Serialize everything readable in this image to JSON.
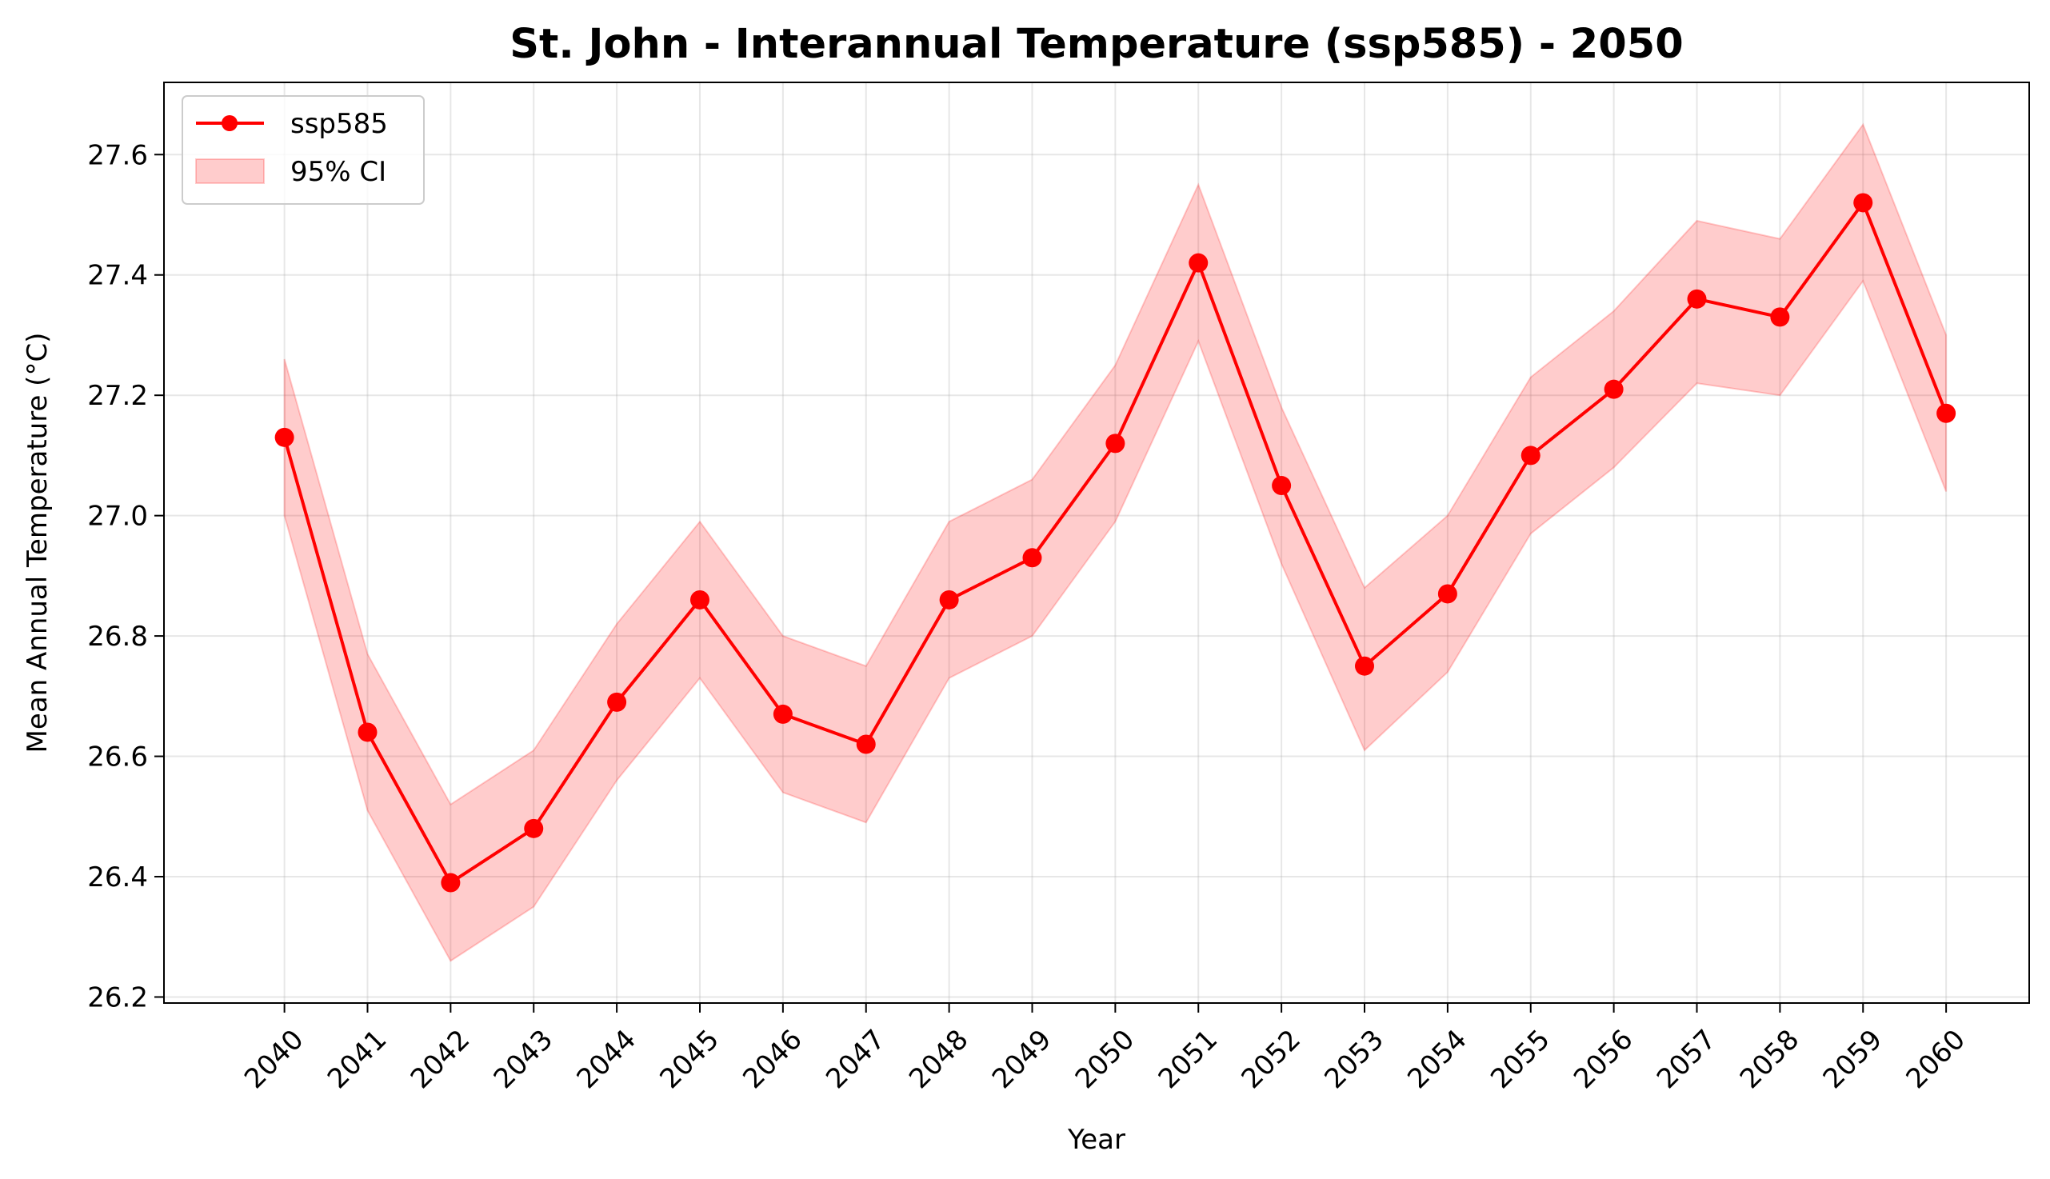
{
  "chart_data": {
    "type": "line",
    "title": "St. John - Interannual Temperature (ssp585) - 2050",
    "xlabel": "Year",
    "ylabel": "Mean Annual Temperature (°C)",
    "x": [
      2040,
      2041,
      2042,
      2043,
      2044,
      2045,
      2046,
      2047,
      2048,
      2049,
      2050,
      2051,
      2052,
      2053,
      2054,
      2055,
      2056,
      2057,
      2058,
      2059,
      2060
    ],
    "x_tick_labels": [
      "2040",
      "2041",
      "2042",
      "2043",
      "2044",
      "2045",
      "2046",
      "2047",
      "2048",
      "2049",
      "2050",
      "2051",
      "2052",
      "2053",
      "2054",
      "2055",
      "2056",
      "2057",
      "2058",
      "2059",
      "2060"
    ],
    "xlim": [
      2038.55,
      2061.0
    ],
    "ylim": [
      26.19,
      27.72
    ],
    "y_ticks": [
      26.2,
      26.4,
      26.6,
      26.8,
      27.0,
      27.2,
      27.4,
      27.6
    ],
    "y_tick_labels": [
      "26.2",
      "26.4",
      "26.6",
      "26.8",
      "27.0",
      "27.2",
      "27.4",
      "27.6"
    ],
    "grid": true,
    "legend": {
      "placement": "upper-left",
      "entries": [
        "ssp585",
        "95% CI"
      ]
    },
    "series": [
      {
        "name": "ssp585",
        "color": "#ff0000",
        "values": [
          27.13,
          26.64,
          26.39,
          26.48,
          26.69,
          26.86,
          26.67,
          26.62,
          26.86,
          26.93,
          27.12,
          27.42,
          27.05,
          26.75,
          26.87,
          27.1,
          27.21,
          27.36,
          27.33,
          27.52,
          27.17
        ]
      }
    ],
    "ci_band": {
      "name": "95% CI",
      "color": "#ff0000",
      "lower": [
        27.0,
        26.51,
        26.26,
        26.35,
        26.56,
        26.73,
        26.54,
        26.49,
        26.73,
        26.8,
        26.99,
        27.29,
        26.92,
        26.61,
        26.74,
        26.97,
        27.08,
        27.22,
        27.2,
        27.39,
        27.04
      ],
      "upper": [
        27.26,
        26.77,
        26.52,
        26.61,
        26.82,
        26.99,
        26.8,
        26.75,
        26.99,
        27.06,
        27.25,
        27.55,
        27.18,
        26.88,
        27.0,
        27.23,
        27.34,
        27.49,
        27.46,
        27.65,
        27.3
      ]
    }
  }
}
